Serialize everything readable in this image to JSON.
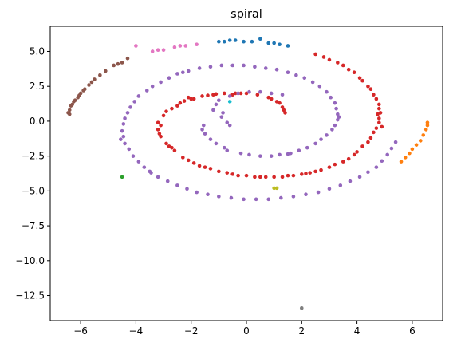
{
  "chart_data": {
    "type": "scatter",
    "title": "spiral",
    "xlabel": "",
    "ylabel": "",
    "xlim": [
      -7.1,
      7.1
    ],
    "ylim": [
      -14.3,
      6.8
    ],
    "x_ticks": [
      -6,
      -4,
      -2,
      0,
      2,
      4,
      6
    ],
    "x_tick_labels": [
      "−6",
      "−4",
      "−2",
      "0",
      "2",
      "4",
      "6"
    ],
    "y_ticks": [
      5.0,
      2.5,
      0.0,
      -2.5,
      -5.0,
      -7.5,
      -10.0,
      -12.5
    ],
    "y_tick_labels": [
      "5.0",
      "2.5",
      "0.0",
      "−2.5",
      "−5.0",
      "−7.5",
      "−10.0",
      "−12.5"
    ],
    "grid": false,
    "legend": "none",
    "series": [
      {
        "color": "#1f77b4",
        "points": [
          [
            -1.0,
            5.7
          ],
          [
            -0.8,
            5.7
          ],
          [
            -0.6,
            5.8
          ],
          [
            -0.4,
            5.8
          ],
          [
            -0.1,
            5.7
          ],
          [
            0.2,
            5.7
          ],
          [
            0.5,
            5.9
          ],
          [
            0.8,
            5.6
          ],
          [
            1.0,
            5.6
          ],
          [
            1.2,
            5.5
          ],
          [
            1.5,
            5.4
          ]
        ]
      },
      {
        "color": "#ff7f0e",
        "points": [
          [
            5.6,
            -2.9
          ],
          [
            5.75,
            -2.6
          ],
          [
            5.9,
            -2.3
          ],
          [
            6.0,
            -2.0
          ],
          [
            6.15,
            -1.7
          ],
          [
            6.3,
            -1.4
          ],
          [
            6.4,
            -1.0
          ],
          [
            6.5,
            -0.6
          ],
          [
            6.55,
            -0.3
          ],
          [
            6.55,
            -0.1
          ]
        ]
      },
      {
        "color": "#2ca02c",
        "points": [
          [
            -4.5,
            -4.0
          ]
        ]
      },
      {
        "color": "#d62728",
        "points": [
          [
            1.4,
            0.6
          ],
          [
            1.3,
            1.0
          ],
          [
            1.1,
            1.4
          ],
          [
            0.8,
            1.7
          ],
          [
            0.4,
            1.9
          ],
          [
            0.0,
            2.0
          ],
          [
            -0.4,
            2.0
          ],
          [
            -0.8,
            2.0
          ],
          [
            -1.2,
            1.9
          ],
          [
            -1.6,
            1.8
          ],
          [
            -2.0,
            1.6
          ],
          [
            -2.4,
            1.3
          ],
          [
            -2.7,
            0.9
          ],
          [
            -3.0,
            0.4
          ],
          [
            -3.2,
            -0.1
          ],
          [
            -3.2,
            -0.6
          ],
          [
            -3.1,
            -1.1
          ],
          [
            -2.9,
            -1.6
          ],
          [
            -2.6,
            -2.1
          ],
          [
            -2.3,
            -2.6
          ],
          [
            -1.9,
            -3.0
          ],
          [
            -1.5,
            -3.3
          ],
          [
            -1.0,
            -3.6
          ],
          [
            -0.5,
            -3.8
          ],
          [
            0.0,
            -3.9
          ],
          [
            0.5,
            -4.0
          ],
          [
            1.0,
            -4.0
          ],
          [
            1.5,
            -3.9
          ],
          [
            2.0,
            -3.8
          ],
          [
            2.5,
            -3.6
          ],
          [
            3.0,
            -3.3
          ],
          [
            3.5,
            -2.9
          ],
          [
            3.9,
            -2.4
          ],
          [
            4.2,
            -1.8
          ],
          [
            4.5,
            -1.2
          ],
          [
            4.7,
            -0.5
          ],
          [
            4.8,
            0.2
          ],
          [
            4.8,
            0.9
          ],
          [
            4.7,
            1.6
          ],
          [
            4.5,
            2.3
          ],
          [
            4.2,
            2.9
          ],
          [
            3.9,
            3.5
          ],
          [
            3.5,
            4.0
          ],
          [
            3.0,
            4.4
          ],
          [
            2.5,
            4.8
          ],
          [
            -0.5,
            1.9
          ],
          [
            -1.4,
            1.85
          ],
          [
            -2.1,
            1.7
          ],
          [
            -2.9,
            0.7
          ],
          [
            -3.1,
            -0.3
          ],
          [
            -2.7,
            -1.9
          ],
          [
            -2.1,
            -2.8
          ],
          [
            -1.3,
            -3.4
          ],
          [
            -0.3,
            -3.9
          ],
          [
            0.7,
            -4.0
          ],
          [
            1.7,
            -3.9
          ],
          [
            2.7,
            -3.5
          ],
          [
            3.7,
            -2.7
          ],
          [
            4.4,
            -1.5
          ],
          [
            4.8,
            -0.1
          ],
          [
            4.8,
            1.2
          ],
          [
            4.4,
            2.5
          ],
          [
            3.7,
            3.7
          ],
          [
            2.8,
            4.6
          ],
          [
            1.2,
            1.3
          ],
          [
            1.35,
            0.8
          ],
          [
            0.9,
            1.6
          ],
          [
            -0.2,
            2.0
          ],
          [
            -1.9,
            1.6
          ],
          [
            -2.5,
            1.1
          ],
          [
            -3.15,
            -0.9
          ],
          [
            -2.8,
            -1.8
          ],
          [
            -1.7,
            -3.2
          ],
          [
            -0.7,
            -3.7
          ],
          [
            0.3,
            -4.0
          ],
          [
            1.3,
            -4.0
          ],
          [
            2.3,
            -3.7
          ],
          [
            3.2,
            -3.1
          ],
          [
            4.0,
            -2.2
          ],
          [
            4.6,
            -0.8
          ],
          [
            4.75,
            0.5
          ],
          [
            4.6,
            1.9
          ],
          [
            4.1,
            3.1
          ],
          [
            3.3,
            4.2
          ],
          [
            -2.25,
            1.45
          ],
          [
            -1.1,
            1.95
          ],
          [
            4.9,
            -0.4
          ],
          [
            4.85,
            0.6
          ],
          [
            2.15,
            -3.75
          ]
        ]
      },
      {
        "color": "#9467bd",
        "points": [
          [
            -0.6,
            -0.3
          ],
          [
            -0.9,
            0.3
          ],
          [
            -1.2,
            0.8
          ],
          [
            -1.0,
            1.5
          ],
          [
            -0.3,
            2.0
          ],
          [
            0.5,
            2.1
          ],
          [
            1.3,
            1.9
          ],
          [
            -1.6,
            -0.6
          ],
          [
            -1.3,
            -1.3
          ],
          [
            -0.8,
            -1.9
          ],
          [
            -0.2,
            -2.3
          ],
          [
            0.5,
            -2.5
          ],
          [
            1.2,
            -2.4
          ],
          [
            1.9,
            -2.1
          ],
          [
            2.5,
            -1.6
          ],
          [
            2.9,
            -1.0
          ],
          [
            3.2,
            -0.3
          ],
          [
            3.3,
            0.5
          ],
          [
            3.2,
            1.3
          ],
          [
            2.9,
            2.1
          ],
          [
            2.4,
            2.8
          ],
          [
            1.8,
            3.3
          ],
          [
            1.1,
            3.7
          ],
          [
            0.3,
            3.9
          ],
          [
            -0.5,
            4.0
          ],
          [
            -1.3,
            3.9
          ],
          [
            -2.1,
            3.6
          ],
          [
            -2.8,
            3.1
          ],
          [
            -3.4,
            2.5
          ],
          [
            -3.9,
            1.8
          ],
          [
            -4.2,
            1.0
          ],
          [
            -4.4,
            0.2
          ],
          [
            -4.5,
            -0.7
          ],
          [
            -4.4,
            -1.6
          ],
          [
            -4.1,
            -2.5
          ],
          [
            -3.7,
            -3.3
          ],
          [
            -3.2,
            -4.0
          ],
          [
            -2.5,
            -4.6
          ],
          [
            -1.8,
            -5.1
          ],
          [
            -1.0,
            -5.4
          ],
          [
            -0.1,
            -5.6
          ],
          [
            0.8,
            -5.6
          ],
          [
            1.7,
            -5.4
          ],
          [
            2.6,
            -5.1
          ],
          [
            3.4,
            -4.6
          ],
          [
            4.1,
            -4.0
          ],
          [
            4.7,
            -3.3
          ],
          [
            5.1,
            -2.4
          ],
          [
            5.4,
            -1.5
          ],
          [
            -0.7,
            -0.1
          ],
          [
            -1.5,
            -0.9
          ],
          [
            -1.1,
            -1.6
          ],
          [
            0.1,
            -2.4
          ],
          [
            0.9,
            -2.5
          ],
          [
            1.6,
            -2.3
          ],
          [
            2.2,
            -1.9
          ],
          [
            2.7,
            -1.3
          ],
          [
            3.1,
            -0.6
          ],
          [
            3.3,
            0.1
          ],
          [
            3.25,
            0.9
          ],
          [
            3.05,
            1.7
          ],
          [
            2.65,
            2.5
          ],
          [
            2.1,
            3.1
          ],
          [
            1.5,
            3.5
          ],
          [
            0.7,
            3.8
          ],
          [
            -0.1,
            4.0
          ],
          [
            -0.9,
            4.0
          ],
          [
            -1.7,
            3.8
          ],
          [
            -2.5,
            3.4
          ],
          [
            -3.1,
            2.8
          ],
          [
            -3.6,
            2.2
          ],
          [
            -4.05,
            1.4
          ],
          [
            -4.3,
            0.6
          ],
          [
            -4.45,
            -0.2
          ],
          [
            -4.45,
            -1.1
          ],
          [
            -4.25,
            -2.0
          ],
          [
            -3.9,
            -2.9
          ],
          [
            -3.45,
            -3.7
          ],
          [
            -2.85,
            -4.3
          ],
          [
            -2.15,
            -4.85
          ],
          [
            -1.4,
            -5.25
          ],
          [
            -0.55,
            -5.5
          ],
          [
            0.35,
            -5.6
          ],
          [
            1.25,
            -5.5
          ],
          [
            2.15,
            -5.25
          ],
          [
            3.0,
            -4.85
          ],
          [
            3.75,
            -4.3
          ],
          [
            4.4,
            -3.65
          ],
          [
            4.9,
            -2.85
          ],
          [
            5.25,
            -1.95
          ],
          [
            -0.85,
            0.6
          ],
          [
            -1.1,
            1.2
          ],
          [
            -0.6,
            1.8
          ],
          [
            0.1,
            2.1
          ],
          [
            0.9,
            2.0
          ],
          [
            -1.55,
            -0.3
          ],
          [
            -4.55,
            -1.3
          ],
          [
            -3.5,
            -3.6
          ],
          [
            3.35,
            0.3
          ],
          [
            -2.3,
            3.5
          ],
          [
            -0.7,
            -2.1
          ],
          [
            1.5,
            -2.35
          ]
        ]
      },
      {
        "color": "#8c564b",
        "points": [
          [
            -6.4,
            0.5
          ],
          [
            -6.4,
            0.8
          ],
          [
            -6.35,
            1.1
          ],
          [
            -6.25,
            1.4
          ],
          [
            -6.1,
            1.7
          ],
          [
            -6.0,
            2.0
          ],
          [
            -5.85,
            2.3
          ],
          [
            -5.7,
            2.6
          ],
          [
            -5.5,
            3.0
          ],
          [
            -5.3,
            3.3
          ],
          [
            -5.1,
            3.6
          ],
          [
            -4.8,
            4.0
          ],
          [
            -4.5,
            4.2
          ],
          [
            -4.3,
            4.5
          ],
          [
            -6.45,
            0.6
          ],
          [
            -6.3,
            1.2
          ],
          [
            -6.05,
            1.85
          ],
          [
            -5.6,
            2.8
          ],
          [
            -4.65,
            4.1
          ],
          [
            -5.9,
            2.2
          ],
          [
            -6.2,
            1.5
          ]
        ]
      },
      {
        "color": "#e377c2",
        "points": [
          [
            -4.0,
            5.4
          ],
          [
            -3.4,
            5.0
          ],
          [
            -3.2,
            5.1
          ],
          [
            -3.0,
            5.1
          ],
          [
            -2.6,
            5.3
          ],
          [
            -2.4,
            5.4
          ],
          [
            -2.2,
            5.4
          ],
          [
            -1.8,
            5.5
          ]
        ]
      },
      {
        "color": "#7f7f7f",
        "points": [
          [
            2.0,
            -13.4
          ]
        ]
      },
      {
        "color": "#bcbd22",
        "points": [
          [
            1.0,
            -4.8
          ],
          [
            1.1,
            -4.8
          ]
        ]
      },
      {
        "color": "#17becf",
        "points": [
          [
            -0.6,
            1.4
          ]
        ]
      }
    ]
  }
}
